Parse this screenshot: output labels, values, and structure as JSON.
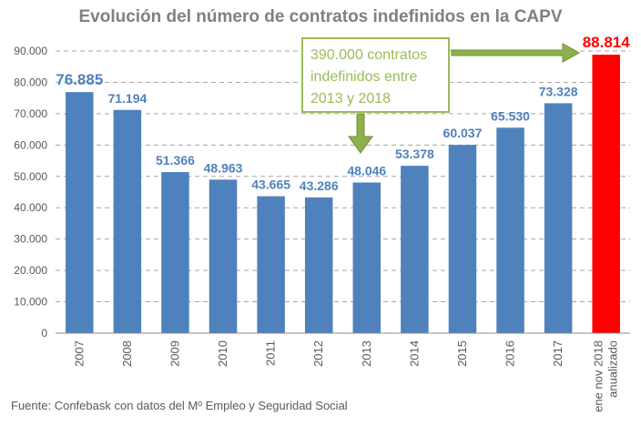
{
  "chart_data": {
    "type": "bar",
    "title": "Evolución del número de contratos indefinidos en la CAPV",
    "categories": [
      "2007",
      "2008",
      "2009",
      "2010",
      "2011",
      "2012",
      "2013",
      "2014",
      "2015",
      "2016",
      "2017",
      "ene nov 2018 anualizado"
    ],
    "category_lines": [
      [
        "2007"
      ],
      [
        "2008"
      ],
      [
        "2009"
      ],
      [
        "2010"
      ],
      [
        "2011"
      ],
      [
        "2012"
      ],
      [
        "2013"
      ],
      [
        "2014"
      ],
      [
        "2015"
      ],
      [
        "2016"
      ],
      [
        "2017"
      ],
      [
        "ene nov 2018",
        "anualizado"
      ]
    ],
    "values": [
      76885,
      71194,
      51366,
      48963,
      43665,
      43286,
      48046,
      53378,
      60037,
      65530,
      73328,
      88814
    ],
    "value_labels": [
      "76.885",
      "71.194",
      "51.366",
      "48.963",
      "43.665",
      "43.286",
      "48.046",
      "53.378",
      "60.037",
      "65.530",
      "73.328",
      "88.814"
    ],
    "yticks": [
      "0",
      "10.000",
      "20.000",
      "30.000",
      "40.000",
      "50.000",
      "60.000",
      "70.000",
      "80.000",
      "90.000"
    ],
    "ylim": [
      0,
      90000
    ],
    "ystep": 10000,
    "grid": true,
    "xlabel": "",
    "ylabel": "",
    "bar_colors": [
      "#4f81bd",
      "#4f81bd",
      "#4f81bd",
      "#4f81bd",
      "#4f81bd",
      "#4f81bd",
      "#4f81bd",
      "#4f81bd",
      "#4f81bd",
      "#4f81bd",
      "#4f81bd",
      "#ff0000"
    ],
    "label_colors": [
      "#4f81bd",
      "#4f81bd",
      "#4f81bd",
      "#4f81bd",
      "#4f81bd",
      "#4f81bd",
      "#4f81bd",
      "#4f81bd",
      "#4f81bd",
      "#4f81bd",
      "#4f81bd",
      "#ff0000"
    ],
    "annotation": "390.000 contratos indefinidos entre 2013 y 2018"
  },
  "colors": {
    "bar": "#4f81bd",
    "highlight": "#ff0000",
    "callout": "#9bbb59",
    "grid": "#a6a6a6"
  },
  "source": "Fuente: Confebask con datos del Mº Empleo y Seguridad Social"
}
